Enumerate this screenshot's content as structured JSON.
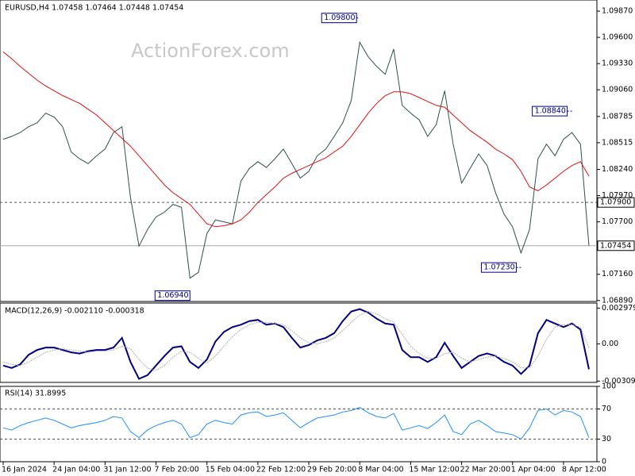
{
  "chart_data": [
    {
      "type": "line",
      "title": "EURUSD,H4  1.07458 1.07464 1.07448 1.07454",
      "watermark": "ActionForex.com",
      "categories": [
        "16 Jan 2024",
        null,
        null,
        null,
        null,
        null,
        "24 Jan 04:00",
        null,
        null,
        null,
        null,
        null,
        "31 Jan 12:00",
        null,
        null,
        null,
        null,
        null,
        "7 Feb 20:00",
        null,
        null,
        null,
        null,
        null,
        "15 Feb 04:00",
        null,
        null,
        null,
        null,
        null,
        "22 Feb 12:00",
        null,
        null,
        null,
        null,
        null,
        "29 Feb 20:00",
        null,
        null,
        null,
        null,
        null,
        "8 Mar 04:00",
        null,
        null,
        null,
        null,
        null,
        "15 Mar 12:00",
        null,
        null,
        null,
        null,
        null,
        "22 Mar 20:00",
        null,
        null,
        null,
        null,
        null,
        "1 Apr 04:00",
        null,
        null,
        null,
        null,
        null,
        "8 Apr 12:00",
        null,
        null,
        null
      ],
      "series": [
        {
          "color": "#2f4f4f",
          "values": [
            1.0855,
            1.0858,
            1.0862,
            1.0868,
            1.0872,
            1.0882,
            1.0878,
            1.0868,
            1.0842,
            1.0835,
            1.083,
            1.0838,
            1.0845,
            1.0862,
            1.0868,
            1.0795,
            1.0745,
            1.0762,
            1.0775,
            1.078,
            1.0788,
            1.0785,
            1.0712,
            1.0718,
            1.0758,
            1.0772,
            1.077,
            1.0768,
            1.0812,
            1.0825,
            1.0832,
            1.0826,
            1.0835,
            1.0845,
            1.083,
            1.0815,
            1.0822,
            1.0838,
            1.0845,
            1.0858,
            1.0872,
            1.0895,
            1.0955,
            1.094,
            1.093,
            1.0922,
            1.0948,
            1.089,
            1.0882,
            1.0875,
            1.0858,
            1.087,
            1.0905,
            1.085,
            1.081,
            1.0825,
            1.084,
            1.0828,
            1.08,
            1.0778,
            1.0765,
            1.0738,
            1.0762,
            1.0835,
            1.085,
            1.0838,
            1.0855,
            1.0862,
            1.085,
            1.07454
          ]
        },
        {
          "color": "#e01010",
          "values": [
            1.0945,
            1.0938,
            1.093,
            1.0923,
            1.0916,
            1.091,
            1.0905,
            1.09,
            1.0896,
            1.0892,
            1.0886,
            1.088,
            1.0872,
            1.0864,
            1.0856,
            1.0848,
            1.0838,
            1.0828,
            1.0818,
            1.0808,
            1.08,
            1.0794,
            1.0788,
            1.0778,
            1.0768,
            1.0765,
            1.0766,
            1.0768,
            1.0772,
            1.078,
            1.079,
            1.0798,
            1.0806,
            1.0815,
            1.082,
            1.0824,
            1.0828,
            1.0832,
            1.0836,
            1.0842,
            1.0848,
            1.0858,
            1.087,
            1.0882,
            1.0892,
            1.09,
            1.0904,
            1.0904,
            1.0902,
            1.0898,
            1.0894,
            1.089,
            1.0888,
            1.088,
            1.0872,
            1.0864,
            1.0858,
            1.0852,
            1.0845,
            1.084,
            1.0834,
            1.0822,
            1.0806,
            1.0802,
            1.0808,
            1.0815,
            1.0822,
            1.0828,
            1.0832,
            1.0817
          ]
        }
      ],
      "ylim": [
        1.0688,
        1.09985
      ],
      "yticks": [
        {
          "value": 1.0987,
          "label": "1.09870"
        },
        {
          "value": 1.096,
          "label": "1.09600"
        },
        {
          "value": 1.0933,
          "label": "1.09330"
        },
        {
          "value": 1.0906,
          "label": "1.09060"
        },
        {
          "value": 1.08785,
          "label": "1.08785"
        },
        {
          "value": 1.08515,
          "label": "1.08515"
        },
        {
          "value": 1.0824,
          "label": "1.08240"
        },
        {
          "value": 1.0797,
          "label": "1.07970"
        },
        {
          "value": 1.077,
          "label": "1.07700"
        },
        {
          "value": 1.0716,
          "label": "1.07160"
        },
        {
          "value": 1.0689,
          "label": "1.06890"
        }
      ],
      "levels": [
        {
          "value": 1.079,
          "label": "1.07900",
          "style": "dashed"
        },
        {
          "value": 1.07454,
          "label": "1.07454",
          "style": "solid"
        }
      ],
      "annotations": [
        {
          "value": 1.098,
          "label": "1.09800"
        },
        {
          "value": 1.0694,
          "label": "1.06940"
        },
        {
          "value": 1.0884,
          "label": "1.08840"
        },
        {
          "value": 1.0723,
          "label": "1.07230"
        }
      ]
    },
    {
      "type": "line",
      "title": "MACD(12,26,9) -0.002110 -0.000318",
      "series": [
        {
          "color": "#000080",
          "values": [
            -0.0018,
            -0.002,
            -0.0017,
            -0.0009,
            -0.0005,
            -0.0003,
            -0.0003,
            -0.0005,
            -0.0007,
            -0.0008,
            -0.0006,
            -0.0005,
            -0.0005,
            -0.0003,
            0.0005,
            -0.0015,
            -0.0029,
            -0.0026,
            -0.0018,
            -0.001,
            -0.0003,
            -0.0002,
            -0.0015,
            -0.002,
            -0.0013,
            0.0002,
            0.001,
            0.0014,
            0.0016,
            0.0019,
            0.002,
            0.0016,
            0.0017,
            0.0014,
            0.0005,
            -0.0003,
            -0.0001,
            0.0003,
            0.0005,
            0.0009,
            0.0019,
            0.0027,
            0.0029,
            0.0026,
            0.0021,
            0.0017,
            0.0016,
            -0.0005,
            -0.0011,
            -0.0011,
            -0.0015,
            -0.0011,
            0.0001,
            -0.001,
            -0.002,
            -0.0015,
            -0.001,
            -0.0008,
            -0.001,
            -0.0015,
            -0.0018,
            -0.0025,
            -0.0018,
            0.0009,
            0.002,
            0.0017,
            0.0014,
            0.0017,
            0.0012,
            -0.00211
          ]
        },
        {
          "color": "#b0b0b0",
          "values": [
            -0.0015,
            -0.0017,
            -0.0018,
            -0.0015,
            -0.0011,
            -0.0007,
            -0.0005,
            -0.0004,
            -0.0005,
            -0.0006,
            -0.0007,
            -0.0006,
            -0.0006,
            -0.0005,
            -0.0002,
            -0.0004,
            -0.0013,
            -0.002,
            -0.0022,
            -0.0018,
            -0.0011,
            -0.0006,
            -0.0007,
            -0.0012,
            -0.0016,
            -0.001,
            -0.0002,
            0.0006,
            0.0012,
            0.0016,
            0.0018,
            0.0018,
            0.0017,
            0.0016,
            0.0011,
            0.0005,
            0.0001,
            0,
            0.0002,
            0.0005,
            0.0011,
            0.0018,
            0.0024,
            0.0027,
            0.0025,
            0.0021,
            0.0018,
            0.0008,
            -0.0002,
            -0.0008,
            -0.0012,
            -0.0012,
            -0.0008,
            -0.0007,
            -0.0012,
            -0.0015,
            -0.0013,
            -0.0011,
            -0.001,
            -0.0012,
            -0.0015,
            -0.002,
            -0.002,
            -0.001,
            0.0004,
            0.0014,
            0.0016,
            0.0016,
            0.0014,
            -0.000318
          ]
        }
      ],
      "ylim": [
        -0.0032,
        0.0034
      ],
      "yticks": [
        0.002979,
        {
          "value": 0,
          "label": "0.00"
        },
        -0.003093
      ]
    },
    {
      "type": "line",
      "title": "RSI(14) 31.8995",
      "series": [
        {
          "color": "#1e90ff",
          "values": [
            45,
            42,
            48,
            52,
            55,
            58,
            55,
            50,
            45,
            48,
            50,
            52,
            55,
            60,
            58,
            40,
            32,
            42,
            48,
            52,
            55,
            50,
            32,
            36,
            50,
            55,
            52,
            50,
            62,
            65,
            66,
            60,
            62,
            65,
            55,
            45,
            52,
            58,
            60,
            62,
            66,
            68,
            72,
            65,
            60,
            58,
            64,
            42,
            45,
            48,
            44,
            52,
            62,
            40,
            36,
            50,
            55,
            48,
            40,
            38,
            36,
            30,
            45,
            68,
            70,
            62,
            68,
            66,
            60,
            31.8995
          ]
        }
      ],
      "ylim": [
        0,
        100
      ],
      "yticks": [
        100,
        70,
        30,
        0
      ],
      "levels": [
        {
          "value": 70,
          "style": "dashed"
        },
        {
          "value": 30,
          "style": "dashed"
        }
      ]
    }
  ]
}
